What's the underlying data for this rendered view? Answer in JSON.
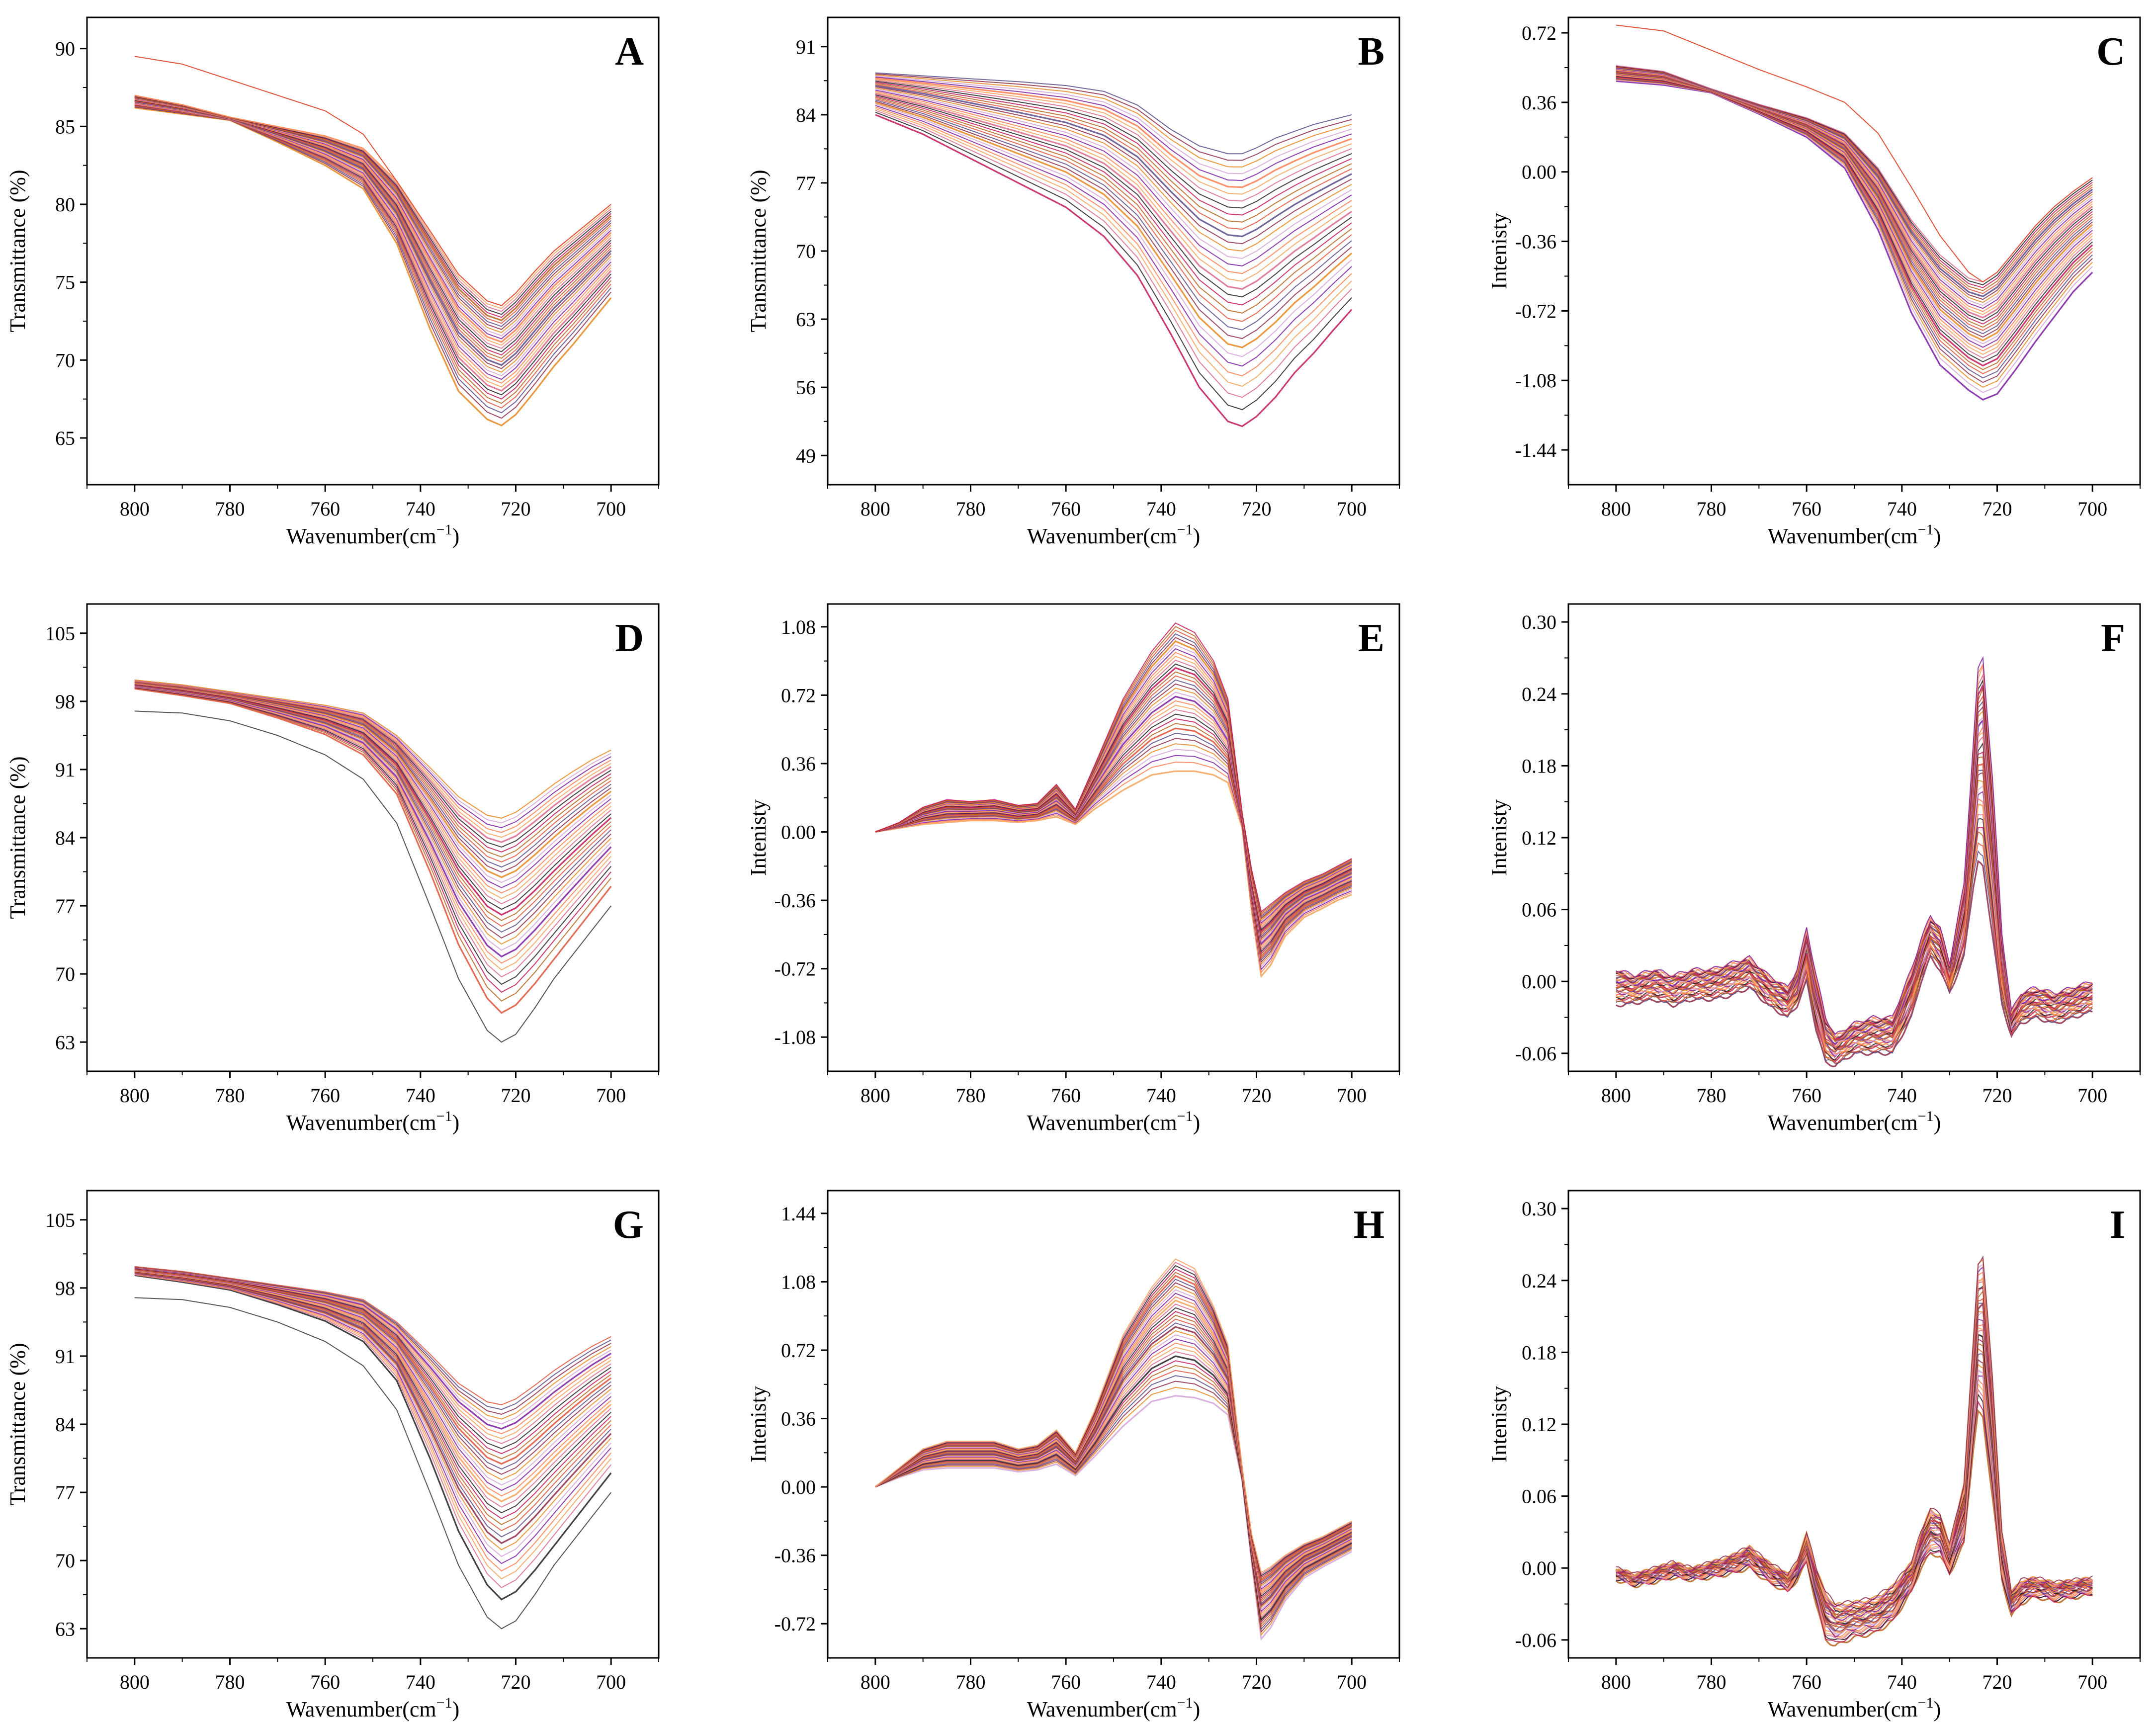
{
  "figure": {
    "series_count_note": "Each panel overlays many spectra (one per sample)",
    "palette": [
      "#e8871e",
      "#c2185b",
      "#7b1fa2",
      "#e0533a",
      "#f4a259",
      "#8e2c48",
      "#222222",
      "#d4a5d8",
      "#b5651d",
      "#ff7f50",
      "#5a4b8a",
      "#d96b8b"
    ]
  },
  "chart_data": [
    {
      "id": "A",
      "panel_label": "A",
      "type": "line",
      "xlabel_prefix": "Wavenumber(cm",
      "xlabel_sup": "−1",
      "xlabel_suffix": ")",
      "ylabel": "Transmittance (%)",
      "xlim": [
        810,
        690
      ],
      "ylim": [
        62,
        92
      ],
      "xticks": [
        800,
        780,
        760,
        740,
        720,
        700
      ],
      "xtick_labels": [
        "800",
        "780",
        "760",
        "740",
        "720",
        "700"
      ],
      "yticks": [
        65,
        70,
        75,
        80,
        85,
        90
      ],
      "ytick_labels": [
        "65",
        "70",
        "75",
        "80",
        "85",
        "90"
      ],
      "x": [
        800,
        790,
        780,
        770,
        760,
        752,
        745,
        738,
        732,
        726,
        723,
        720,
        716,
        712,
        708,
        704,
        700
      ],
      "series_envelope": {
        "upper": [
          87.0,
          86.4,
          85.6,
          85.0,
          84.4,
          83.6,
          81.5,
          78.3,
          75.5,
          73.8,
          73.5,
          74.3,
          75.7,
          77.0,
          78.0,
          79.0,
          80.0
        ],
        "lower": [
          86.2,
          85.8,
          85.4,
          84.0,
          82.5,
          81.0,
          77.5,
          72.0,
          68.0,
          66.2,
          65.8,
          66.5,
          68.0,
          69.6,
          71.0,
          72.5,
          74.0
        ]
      },
      "outliers": [
        {
          "name": "upper outlier",
          "values": [
            89.5,
            89.0,
            88.0,
            87.0,
            86.0,
            84.5,
            81.5,
            78.3,
            75.5,
            73.8,
            73.5,
            74.3,
            75.7,
            77.0,
            78.0,
            79.0,
            80.0
          ]
        }
      ]
    },
    {
      "id": "B",
      "panel_label": "B",
      "type": "line",
      "xlabel_prefix": "Wavenumber(cm",
      "xlabel_sup": "−1",
      "xlabel_suffix": ")",
      "ylabel": "Transmittance (%)",
      "xlim": [
        810,
        690
      ],
      "ylim": [
        46,
        94
      ],
      "xticks": [
        800,
        780,
        760,
        740,
        720,
        700
      ],
      "xtick_labels": [
        "800",
        "780",
        "760",
        "740",
        "720",
        "700"
      ],
      "yticks": [
        49,
        56,
        63,
        70,
        77,
        84,
        91
      ],
      "ytick_labels": [
        "49",
        "56",
        "63",
        "70",
        "77",
        "84",
        "91"
      ],
      "x": [
        800,
        790,
        780,
        770,
        760,
        752,
        745,
        738,
        732,
        726,
        723,
        720,
        716,
        712,
        708,
        704,
        700
      ],
      "series_envelope": {
        "upper": [
          88.3,
          88.0,
          87.7,
          87.4,
          87.0,
          86.4,
          85.0,
          82.5,
          80.8,
          80.0,
          80.0,
          80.6,
          81.6,
          82.3,
          83.0,
          83.5,
          84.0
        ],
        "lower": [
          84.0,
          82.0,
          79.5,
          77.0,
          74.5,
          71.5,
          67.5,
          61.5,
          56.0,
          52.5,
          52.0,
          53.0,
          55.0,
          57.5,
          59.5,
          61.8,
          64.0
        ]
      },
      "outliers": []
    },
    {
      "id": "C",
      "panel_label": "C",
      "type": "line",
      "xlabel_prefix": "Wavenumber(cm",
      "xlabel_sup": "−1",
      "xlabel_suffix": ")",
      "ylabel": "Intenisty",
      "xlim": [
        810,
        690
      ],
      "ylim": [
        -1.62,
        0.8
      ],
      "xticks": [
        800,
        780,
        760,
        740,
        720,
        700
      ],
      "xtick_labels": [
        "800",
        "780",
        "760",
        "740",
        "720",
        "700"
      ],
      "yticks": [
        -1.44,
        -1.08,
        -0.72,
        -0.36,
        0.0,
        0.36,
        0.72
      ],
      "ytick_labels": [
        "-1.44",
        "-1.08",
        "-0.72",
        "-0.36",
        "0.00",
        "0.36",
        "0.72"
      ],
      "x": [
        800,
        790,
        780,
        770,
        760,
        752,
        745,
        738,
        732,
        726,
        723,
        720,
        716,
        712,
        708,
        704,
        700
      ],
      "series_envelope": {
        "upper": [
          0.55,
          0.52,
          0.43,
          0.35,
          0.28,
          0.2,
          0.02,
          -0.25,
          -0.43,
          -0.55,
          -0.57,
          -0.52,
          -0.4,
          -0.28,
          -0.18,
          -0.1,
          -0.03
        ],
        "lower": [
          0.47,
          0.45,
          0.41,
          0.3,
          0.18,
          0.02,
          -0.3,
          -0.73,
          -1.0,
          -1.13,
          -1.18,
          -1.15,
          -1.02,
          -0.88,
          -0.75,
          -0.62,
          -0.52
        ]
      },
      "outliers": [
        {
          "name": "upper outlier",
          "values": [
            0.76,
            0.73,
            0.63,
            0.53,
            0.44,
            0.36,
            0.2,
            -0.08,
            -0.33,
            -0.52,
            -0.57,
            -0.52,
            -0.4,
            -0.28,
            -0.18,
            -0.1,
            -0.03
          ]
        }
      ]
    },
    {
      "id": "D",
      "panel_label": "D",
      "type": "line",
      "xlabel_prefix": "Wavenumber(cm",
      "xlabel_sup": "−1",
      "xlabel_suffix": ")",
      "ylabel": "Transmittance (%)",
      "xlim": [
        810,
        690
      ],
      "ylim": [
        60,
        108
      ],
      "xticks": [
        800,
        780,
        760,
        740,
        720,
        700
      ],
      "xtick_labels": [
        "800",
        "780",
        "760",
        "740",
        "720",
        "700"
      ],
      "yticks": [
        63,
        70,
        77,
        84,
        91,
        98,
        105
      ],
      "ytick_labels": [
        "63",
        "70",
        "77",
        "84",
        "91",
        "98",
        "105"
      ],
      "x": [
        800,
        790,
        780,
        770,
        760,
        752,
        745,
        738,
        732,
        726,
        723,
        720,
        716,
        712,
        708,
        704,
        700
      ],
      "series_envelope": {
        "upper": [
          100.2,
          99.7,
          99.0,
          98.3,
          97.6,
          96.8,
          94.5,
          91.2,
          88.2,
          86.3,
          86.0,
          86.6,
          88.0,
          89.5,
          90.8,
          92.0,
          93.0
        ],
        "lower": [
          99.3,
          98.6,
          97.8,
          96.3,
          94.6,
          92.5,
          88.5,
          80.5,
          73.0,
          67.5,
          66.0,
          66.8,
          69.0,
          71.5,
          74.0,
          76.5,
          79.0
        ]
      },
      "outliers": [
        {
          "name": "lower outlier",
          "values": [
            97.0,
            96.8,
            96.0,
            94.5,
            92.5,
            90.0,
            85.5,
            77.0,
            69.5,
            64.2,
            63.0,
            63.8,
            66.5,
            69.5,
            72.0,
            74.5,
            77.0
          ]
        }
      ]
    },
    {
      "id": "E",
      "panel_label": "E",
      "type": "line",
      "xlabel_prefix": "Wavenumber(cm",
      "xlabel_sup": "−1",
      "xlabel_suffix": ")",
      "ylabel": "Intenisty",
      "xlim": [
        810,
        690
      ],
      "ylim": [
        -1.26,
        1.2
      ],
      "xticks": [
        800,
        780,
        760,
        740,
        720,
        700
      ],
      "xtick_labels": [
        "800",
        "780",
        "760",
        "740",
        "720",
        "700"
      ],
      "yticks": [
        -1.08,
        -0.72,
        -0.36,
        0.0,
        0.36,
        0.72,
        1.08
      ],
      "ytick_labels": [
        "-1.08",
        "-0.72",
        "-0.36",
        "0.00",
        "0.36",
        "0.72",
        "1.08"
      ],
      "x": [
        800,
        795,
        790,
        785,
        780,
        775,
        770,
        766,
        762,
        758,
        754,
        748,
        742,
        737,
        733,
        729,
        726,
        723,
        721,
        719,
        717,
        714,
        710,
        706,
        703,
        700
      ],
      "series_envelope": {
        "upper": [
          0.0,
          0.05,
          0.13,
          0.17,
          0.16,
          0.17,
          0.14,
          0.15,
          0.25,
          0.12,
          0.35,
          0.7,
          0.95,
          1.1,
          1.05,
          0.9,
          0.7,
          0.1,
          -0.2,
          -0.42,
          -0.38,
          -0.32,
          -0.26,
          -0.22,
          -0.18,
          -0.14
        ],
        "lower": [
          0.0,
          0.02,
          0.04,
          0.05,
          0.06,
          0.06,
          0.05,
          0.06,
          0.08,
          0.04,
          0.12,
          0.22,
          0.3,
          0.32,
          0.32,
          0.3,
          0.26,
          0.02,
          -0.42,
          -0.76,
          -0.7,
          -0.55,
          -0.45,
          -0.4,
          -0.36,
          -0.33
        ]
      },
      "outliers": []
    },
    {
      "id": "F",
      "panel_label": "F",
      "type": "line",
      "xlabel_prefix": "Wavenumber(cm",
      "xlabel_sup": "−1",
      "xlabel_suffix": ")",
      "ylabel": "Intenisty",
      "xlim": [
        810,
        690
      ],
      "ylim": [
        -0.075,
        0.315
      ],
      "xticks": [
        800,
        780,
        760,
        740,
        720,
        700
      ],
      "xtick_labels": [
        "800",
        "780",
        "760",
        "740",
        "720",
        "700"
      ],
      "yticks": [
        -0.06,
        0.0,
        0.06,
        0.12,
        0.18,
        0.24,
        0.3
      ],
      "ytick_labels": [
        "-0.06",
        "0.00",
        "0.06",
        "0.12",
        "0.18",
        "0.24",
        "0.30"
      ],
      "x": [
        800,
        796,
        792,
        788,
        784,
        780,
        776,
        772,
        768,
        764,
        762,
        760,
        758,
        756,
        754,
        750,
        746,
        742,
        738,
        736,
        734,
        732,
        730,
        727,
        725,
        724,
        723,
        721,
        719,
        717,
        715,
        712,
        708,
        704,
        700
      ],
      "series_envelope": {
        "upper": [
          0.01,
          0.005,
          0.01,
          0.005,
          0.01,
          0.01,
          0.015,
          0.02,
          0.005,
          -0.005,
          0.01,
          0.045,
          0.005,
          -0.03,
          -0.045,
          -0.035,
          -0.03,
          -0.03,
          0.01,
          0.035,
          0.055,
          0.045,
          0.015,
          0.08,
          0.2,
          0.26,
          0.27,
          0.17,
          0.04,
          -0.025,
          -0.01,
          -0.005,
          -0.01,
          -0.005,
          0.0
        ],
        "lower": [
          -0.02,
          -0.018,
          -0.015,
          -0.02,
          -0.015,
          -0.015,
          -0.012,
          -0.005,
          -0.02,
          -0.03,
          -0.02,
          0.0,
          -0.04,
          -0.068,
          -0.07,
          -0.06,
          -0.06,
          -0.06,
          -0.03,
          0.0,
          0.02,
          0.01,
          -0.01,
          0.02,
          0.08,
          0.1,
          0.095,
          0.04,
          -0.02,
          -0.045,
          -0.035,
          -0.03,
          -0.035,
          -0.03,
          -0.025
        ]
      },
      "outliers": []
    },
    {
      "id": "G",
      "panel_label": "G",
      "type": "line",
      "xlabel_prefix": "Wavenumber(cm",
      "xlabel_sup": "−1",
      "xlabel_suffix": ")",
      "ylabel": "Transmittance (%)",
      "xlim": [
        810,
        690
      ],
      "ylim": [
        60,
        108
      ],
      "xticks": [
        800,
        780,
        760,
        740,
        720,
        700
      ],
      "xtick_labels": [
        "800",
        "780",
        "760",
        "740",
        "720",
        "700"
      ],
      "yticks": [
        63,
        70,
        77,
        84,
        91,
        98,
        105
      ],
      "ytick_labels": [
        "63",
        "70",
        "77",
        "84",
        "91",
        "98",
        "105"
      ],
      "x": [
        800,
        790,
        780,
        770,
        760,
        752,
        745,
        738,
        732,
        726,
        723,
        720,
        716,
        712,
        708,
        704,
        700
      ],
      "series_envelope": {
        "upper": [
          100.2,
          99.7,
          99.0,
          98.3,
          97.6,
          96.8,
          94.5,
          91.2,
          88.2,
          86.3,
          86.0,
          86.6,
          88.0,
          89.5,
          90.8,
          92.0,
          93.0
        ],
        "lower": [
          99.3,
          98.6,
          97.8,
          96.3,
          94.6,
          92.5,
          88.5,
          80.5,
          73.0,
          67.5,
          66.0,
          66.8,
          69.0,
          71.5,
          74.0,
          76.5,
          79.0
        ]
      },
      "outliers": [
        {
          "name": "lower outlier",
          "values": [
            97.0,
            96.8,
            96.0,
            94.5,
            92.5,
            90.0,
            85.5,
            77.0,
            69.5,
            64.2,
            63.0,
            63.8,
            66.5,
            69.5,
            72.0,
            74.5,
            77.0
          ]
        }
      ]
    },
    {
      "id": "H",
      "panel_label": "H",
      "type": "line",
      "xlabel_prefix": "Wavenumber(cm",
      "xlabel_sup": "−1",
      "xlabel_suffix": ")",
      "ylabel": "Intenisty",
      "xlim": [
        810,
        690
      ],
      "ylim": [
        -0.9,
        1.56
      ],
      "xticks": [
        800,
        780,
        760,
        740,
        720,
        700
      ],
      "xtick_labels": [
        "800",
        "780",
        "760",
        "740",
        "720",
        "700"
      ],
      "yticks": [
        -0.72,
        -0.36,
        0.0,
        0.36,
        0.72,
        1.08,
        1.44
      ],
      "ytick_labels": [
        "-0.72",
        "-0.36",
        "0.00",
        "0.36",
        "0.72",
        "1.08",
        "1.44"
      ],
      "x": [
        800,
        795,
        790,
        785,
        780,
        775,
        770,
        766,
        762,
        758,
        754,
        748,
        742,
        737,
        733,
        729,
        726,
        723,
        721,
        719,
        717,
        714,
        710,
        706,
        703,
        700
      ],
      "series_envelope": {
        "upper": [
          0.0,
          0.1,
          0.2,
          0.24,
          0.24,
          0.24,
          0.2,
          0.22,
          0.3,
          0.18,
          0.4,
          0.8,
          1.05,
          1.2,
          1.15,
          0.95,
          0.75,
          0.1,
          -0.25,
          -0.45,
          -0.42,
          -0.36,
          -0.3,
          -0.26,
          -0.22,
          -0.18
        ],
        "lower": [
          0.0,
          0.05,
          0.09,
          0.1,
          0.1,
          0.1,
          0.08,
          0.09,
          0.12,
          0.06,
          0.16,
          0.32,
          0.45,
          0.48,
          0.47,
          0.44,
          0.38,
          0.03,
          -0.4,
          -0.8,
          -0.74,
          -0.6,
          -0.48,
          -0.42,
          -0.38,
          -0.34
        ]
      },
      "outliers": []
    },
    {
      "id": "I",
      "panel_label": "I",
      "type": "line",
      "xlabel_prefix": "Wavenumber(cm",
      "xlabel_sup": "−1",
      "xlabel_suffix": ")",
      "ylabel": "Intenisty",
      "xlim": [
        810,
        690
      ],
      "ylim": [
        -0.075,
        0.315
      ],
      "xticks": [
        800,
        780,
        760,
        740,
        720,
        700
      ],
      "xtick_labels": [
        "800",
        "780",
        "760",
        "740",
        "720",
        "700"
      ],
      "yticks": [
        -0.06,
        0.0,
        0.06,
        0.12,
        0.18,
        0.24,
        0.3
      ],
      "ytick_labels": [
        "-0.06",
        "0.00",
        "0.06",
        "0.12",
        "0.18",
        "0.24",
        "0.30"
      ],
      "x": [
        800,
        796,
        792,
        788,
        784,
        780,
        776,
        772,
        768,
        764,
        762,
        760,
        758,
        756,
        754,
        750,
        746,
        742,
        738,
        736,
        734,
        732,
        730,
        727,
        725,
        724,
        723,
        721,
        719,
        717,
        715,
        712,
        708,
        704,
        700
      ],
      "series_envelope": {
        "upper": [
          0.0,
          -0.005,
          0.0,
          0.005,
          0.0,
          0.005,
          0.01,
          0.018,
          0.005,
          -0.005,
          0.005,
          0.03,
          0.0,
          -0.02,
          -0.03,
          -0.028,
          -0.025,
          -0.015,
          0.005,
          0.03,
          0.05,
          0.045,
          0.02,
          0.07,
          0.19,
          0.255,
          0.26,
          0.16,
          0.03,
          -0.02,
          -0.01,
          -0.008,
          -0.012,
          -0.01,
          -0.008
        ],
        "lower": [
          -0.01,
          -0.015,
          -0.012,
          -0.008,
          -0.01,
          -0.008,
          -0.005,
          0.0,
          -0.012,
          -0.02,
          -0.01,
          0.005,
          -0.03,
          -0.06,
          -0.065,
          -0.058,
          -0.055,
          -0.045,
          -0.02,
          0.0,
          0.012,
          0.01,
          -0.005,
          0.02,
          0.1,
          0.13,
          0.125,
          0.06,
          -0.01,
          -0.04,
          -0.03,
          -0.024,
          -0.028,
          -0.025,
          -0.022
        ]
      },
      "outliers": []
    }
  ]
}
